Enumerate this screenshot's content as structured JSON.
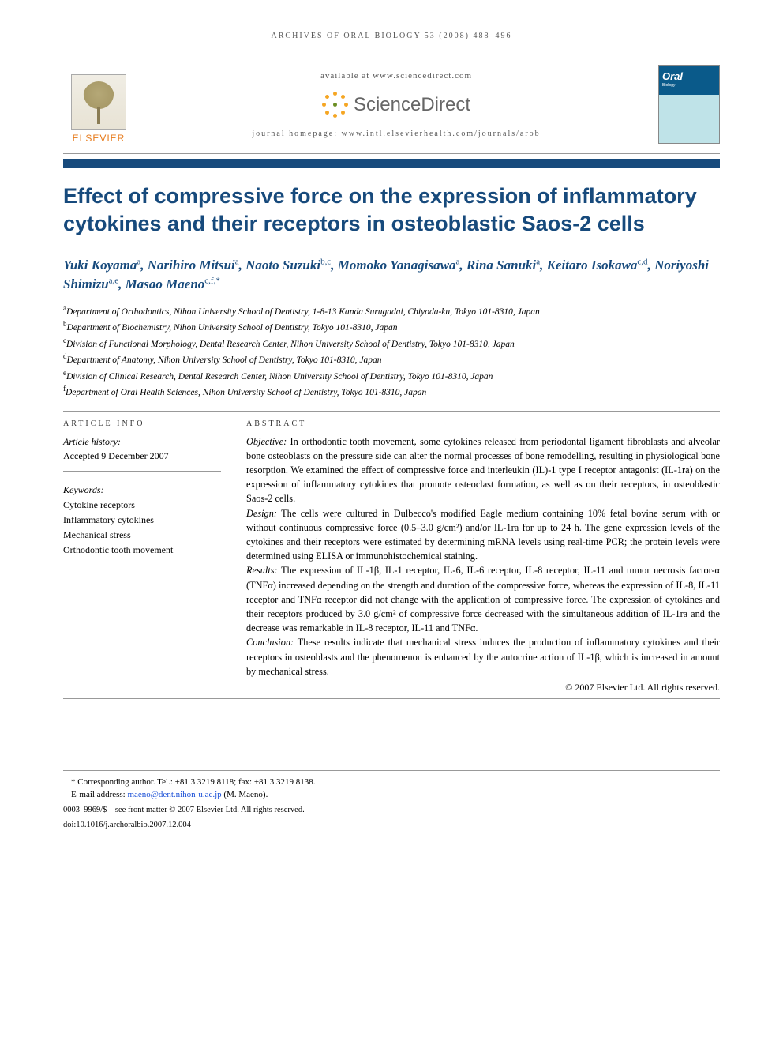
{
  "runningHeader": "ARCHIVES OF ORAL BIOLOGY 53 (2008) 488–496",
  "topBlock": {
    "elsevierWord": "ELSEVIER",
    "availableLine": "available at www.sciencedirect.com",
    "sdText": "ScienceDirect",
    "homepageLine": "journal homepage: www.intl.elsevierhealth.com/journals/arob",
    "journalCoverTitle": "Oral",
    "journalCoverSub": "Biology"
  },
  "title": "Effect of compressive force on the expression of inflammatory cytokines and their receptors in osteoblastic Saos-2 cells",
  "authors": [
    {
      "name": "Yuki Koyama",
      "sup": "a"
    },
    {
      "name": "Narihiro Mitsui",
      "sup": "a"
    },
    {
      "name": "Naoto Suzuki",
      "sup": "b,c"
    },
    {
      "name": "Momoko Yanagisawa",
      "sup": "a"
    },
    {
      "name": "Rina Sanuki",
      "sup": "a"
    },
    {
      "name": "Keitaro Isokawa",
      "sup": "c,d"
    },
    {
      "name": "Noriyoshi Shimizu",
      "sup": "a,e"
    },
    {
      "name": "Masao Maeno",
      "sup": "c,f,*"
    }
  ],
  "affiliations": [
    {
      "sup": "a",
      "text": "Department of Orthodontics, Nihon University School of Dentistry, 1-8-13 Kanda Surugadai, Chiyoda-ku, Tokyo 101-8310, Japan"
    },
    {
      "sup": "b",
      "text": "Department of Biochemistry, Nihon University School of Dentistry, Tokyo 101-8310, Japan"
    },
    {
      "sup": "c",
      "text": "Division of Functional Morphology, Dental Research Center, Nihon University School of Dentistry, Tokyo 101-8310, Japan"
    },
    {
      "sup": "d",
      "text": "Department of Anatomy, Nihon University School of Dentistry, Tokyo 101-8310, Japan"
    },
    {
      "sup": "e",
      "text": "Division of Clinical Research, Dental Research Center, Nihon University School of Dentistry, Tokyo 101-8310, Japan"
    },
    {
      "sup": "f",
      "text": "Department of Oral Health Sciences, Nihon University School of Dentistry, Tokyo 101-8310, Japan"
    }
  ],
  "articleInfo": {
    "heading": "ARTICLE INFO",
    "historyLabel": "Article history:",
    "historyText": "Accepted 9 December 2007",
    "keywordsLabel": "Keywords:",
    "keywords": [
      "Cytokine receptors",
      "Inflammatory cytokines",
      "Mechanical stress",
      "Orthodontic tooth movement"
    ]
  },
  "abstract": {
    "heading": "ABSTRACT",
    "sections": [
      {
        "label": "Objective:",
        "text": "In orthodontic tooth movement, some cytokines released from periodontal ligament fibroblasts and alveolar bone osteoblasts on the pressure side can alter the normal processes of bone remodelling, resulting in physiological bone resorption. We examined the effect of compressive force and interleukin (IL)-1 type I receptor antagonist (IL-1ra) on the expression of inflammatory cytokines that promote osteoclast formation, as well as on their receptors, in osteoblastic Saos-2 cells."
      },
      {
        "label": "Design:",
        "text": "The cells were cultured in Dulbecco's modified Eagle medium containing 10% fetal bovine serum with or without continuous compressive force (0.5–3.0 g/cm²) and/or IL-1ra for up to 24 h. The gene expression levels of the cytokines and their receptors were estimated by determining mRNA levels using real-time PCR; the protein levels were determined using ELISA or immunohistochemical staining."
      },
      {
        "label": "Results:",
        "text": "The expression of IL-1β, IL-1 receptor, IL-6, IL-6 receptor, IL-8 receptor, IL-11 and tumor necrosis factor-α (TNFα) increased depending on the strength and duration of the compressive force, whereas the expression of IL-8, IL-11 receptor and TNFα receptor did not change with the application of compressive force. The expression of cytokines and their receptors produced by 3.0 g/cm² of compressive force decreased with the simultaneous addition of IL-1ra and the decrease was remarkable in IL-8 receptor, IL-11 and TNFα."
      },
      {
        "label": "Conclusion:",
        "text": "These results indicate that mechanical stress induces the production of inflammatory cytokines and their receptors in osteoblasts and the phenomenon is enhanced by the autocrine action of IL-1β, which is increased in amount by mechanical stress."
      }
    ],
    "copyright": "© 2007 Elsevier Ltd. All rights reserved."
  },
  "footer": {
    "corresponding": "* Corresponding author. Tel.: +81 3 3219 8118; fax: +81 3 3219 8138.",
    "emailLabel": "E-mail address:",
    "email": "maeno@dent.nihon-u.ac.jp",
    "emailName": "(M. Maeno).",
    "meta1": "0003–9969/$ – see front matter © 2007 Elsevier Ltd. All rights reserved.",
    "meta2": "doi:10.1016/j.archoralbio.2007.12.004"
  },
  "colors": {
    "brandBlue": "#174a7c",
    "elsevierOrange": "#e67817",
    "sdOrange": "#f5a623",
    "linkBlue": "#1a4fd6",
    "ruleGrey": "#999999"
  }
}
